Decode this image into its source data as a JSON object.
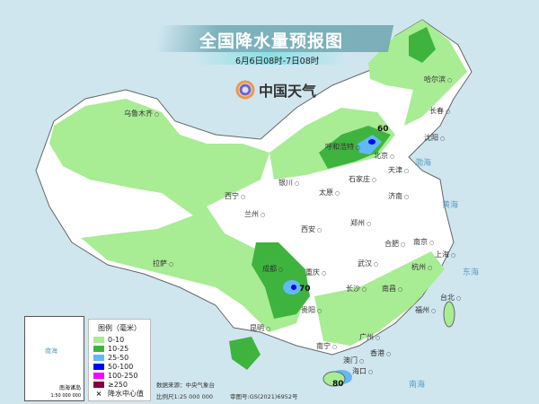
{
  "header": {
    "title": "全国降水量预报图",
    "subtitle": "6月6日08时-7日08时",
    "logo_text": "中国天气"
  },
  "legend": {
    "title": "图例（毫米）",
    "items": [
      {
        "label": "0-10",
        "color": "#a8ec94"
      },
      {
        "label": "10-25",
        "color": "#3eb43e"
      },
      {
        "label": "25-50",
        "color": "#63b8f9"
      },
      {
        "label": "50-100",
        "color": "#0000fe"
      },
      {
        "label": "100-250",
        "color": "#fa00fa"
      },
      {
        "label": "≥250",
        "color": "#810040"
      }
    ],
    "center_marker": "×",
    "center_label": "降水中心值"
  },
  "inset": {
    "title": "南海诸岛",
    "scale": "1:50 000 000",
    "sea": "南海"
  },
  "footer": {
    "source": "数据来源：中央气象台",
    "scale": "比例尺1:25 000 000",
    "approval": "审图号:GS(2021)6952号"
  },
  "cities": [
    {
      "name": "乌鲁木齐"
    },
    {
      "name": "哈尔滨"
    },
    {
      "name": "长春"
    },
    {
      "name": "沈阳"
    },
    {
      "name": "呼和浩特"
    },
    {
      "name": "北京"
    },
    {
      "name": "天津"
    },
    {
      "name": "石家庄"
    },
    {
      "name": "太原"
    },
    {
      "name": "济南"
    },
    {
      "name": "银川"
    },
    {
      "name": "西宁"
    },
    {
      "name": "兰州"
    },
    {
      "name": "西安"
    },
    {
      "name": "郑州"
    },
    {
      "name": "合肥"
    },
    {
      "name": "南京"
    },
    {
      "name": "上海"
    },
    {
      "name": "武汉"
    },
    {
      "name": "杭州"
    },
    {
      "name": "拉萨"
    },
    {
      "name": "成都"
    },
    {
      "name": "重庆"
    },
    {
      "name": "贵阳"
    },
    {
      "name": "长沙"
    },
    {
      "name": "南昌"
    },
    {
      "name": "福州"
    },
    {
      "name": "台北"
    },
    {
      "name": "昆明"
    },
    {
      "name": "南宁"
    },
    {
      "name": "广州"
    },
    {
      "name": "香港"
    },
    {
      "name": "澳门"
    },
    {
      "name": "海口"
    }
  ],
  "seas": [
    {
      "name": "渤海"
    },
    {
      "name": "黄海"
    },
    {
      "name": "东海"
    },
    {
      "name": "南海"
    }
  ],
  "center_values": [
    "60",
    "70",
    "80"
  ]
}
